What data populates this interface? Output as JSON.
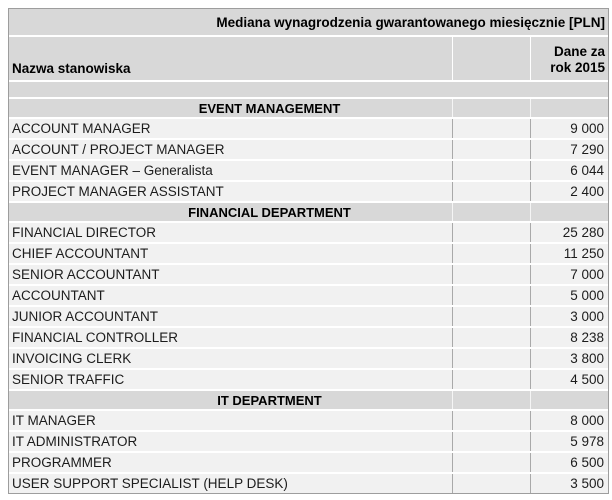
{
  "title": "Mediana wynagrodzenia gwarantowanego miesięcznie [PLN]",
  "columns": {
    "position_label": "Nazwa stanowiska",
    "value_label": "Dane za\nrok 2015"
  },
  "sections": [
    {
      "name": "EVENT MANAGEMENT",
      "rows": [
        {
          "position": "ACCOUNT MANAGER",
          "value": "9 000"
        },
        {
          "position": "ACCOUNT / PROJECT MANAGER",
          "value": "7 290"
        },
        {
          "position": "EVENT MANAGER – Generalista",
          "value": "6 044"
        },
        {
          "position": "PROJECT MANAGER ASSISTANT",
          "value": "2 400"
        }
      ]
    },
    {
      "name": "FINANCIAL DEPARTMENT",
      "rows": [
        {
          "position": "FINANCIAL DIRECTOR",
          "value": "25 280"
        },
        {
          "position": "CHIEF ACCOUNTANT",
          "value": "11 250"
        },
        {
          "position": "SENIOR ACCOUNTANT",
          "value": "7 000"
        },
        {
          "position": "ACCOUNTANT",
          "value": "5 000"
        },
        {
          "position": "JUNIOR ACCOUNTANT",
          "value": "3 000"
        },
        {
          "position": "FINANCIAL CONTROLLER",
          "value": "8 238"
        },
        {
          "position": "INVOICING CLERK",
          "value": "3 800"
        },
        {
          "position": "SENIOR TRAFFIC",
          "value": "4 500"
        }
      ]
    },
    {
      "name": "IT DEPARTMENT",
      "rows": [
        {
          "position": "IT MANAGER",
          "value": "8 000"
        },
        {
          "position": "IT ADMINISTRATOR",
          "value": "5 978"
        },
        {
          "position": "PROGRAMMER",
          "value": "6 500"
        },
        {
          "position": "USER SUPPORT SPECIALIST (HELP DESK)",
          "value": "3 500"
        }
      ]
    }
  ],
  "colors": {
    "header-bg": "#d8d8d8",
    "row-bg": "#f1f1f1",
    "table-border": "#9d9d9d",
    "cell-divider": "#a9a9a9",
    "heading-text": "#000000",
    "text": "#1c1c1c"
  },
  "chart_data": {
    "type": "table",
    "title": "Mediana wynagrodzenia gwarantowanego miesięcznie [PLN]",
    "columns": [
      "Nazwa stanowiska",
      "Dane za rok 2015"
    ],
    "sections": [
      {
        "section": "EVENT MANAGEMENT",
        "rows": [
          [
            "ACCOUNT MANAGER",
            9000
          ],
          [
            "ACCOUNT / PROJECT MANAGER",
            7290
          ],
          [
            "EVENT MANAGER – Generalista",
            6044
          ],
          [
            "PROJECT MANAGER ASSISTANT",
            2400
          ]
        ]
      },
      {
        "section": "FINANCIAL DEPARTMENT",
        "rows": [
          [
            "FINANCIAL DIRECTOR",
            25280
          ],
          [
            "CHIEF ACCOUNTANT",
            11250
          ],
          [
            "SENIOR ACCOUNTANT",
            7000
          ],
          [
            "ACCOUNTANT",
            5000
          ],
          [
            "JUNIOR ACCOUNTANT",
            3000
          ],
          [
            "FINANCIAL CONTROLLER",
            8238
          ],
          [
            "INVOICING CLERK",
            3800
          ],
          [
            "SENIOR TRAFFIC",
            4500
          ]
        ]
      },
      {
        "section": "IT DEPARTMENT",
        "rows": [
          [
            "IT MANAGER",
            8000
          ],
          [
            "IT ADMINISTRATOR",
            5978
          ],
          [
            "PROGRAMMER",
            6500
          ],
          [
            "USER SUPPORT SPECIALIST (HELP DESK)",
            3500
          ]
        ]
      }
    ]
  }
}
